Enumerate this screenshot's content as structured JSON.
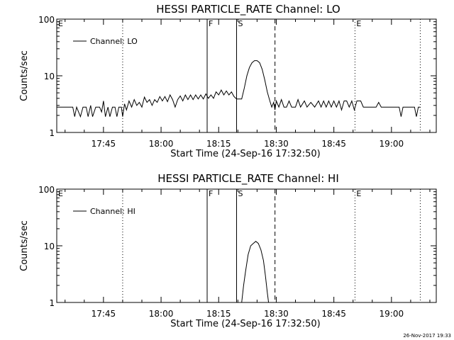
{
  "chart_data": [
    {
      "type": "line",
      "title": "HESSI PARTICLE_RATE Channel: LO",
      "xlabel": "Start Time (24-Sep-16 17:32:50)",
      "ylabel": "Counts/sec",
      "yscale": "log",
      "ylim": [
        1,
        100
      ],
      "xlim": [
        "17:32:50",
        "19:11:40"
      ],
      "xticks": [
        "17:45",
        "18:00",
        "18:15",
        "18:30",
        "18:45",
        "19:00"
      ],
      "yticks": [
        "1",
        "10",
        "100"
      ],
      "legend": {
        "placement": "top-left",
        "entries": [
          "Channel: LO"
        ]
      },
      "flags": [
        {
          "label": "E",
          "time": "17:32:50",
          "style": "dotted"
        },
        {
          "label": "",
          "time": "17:50:00",
          "style": "dotted"
        },
        {
          "label": "F",
          "time": "18:12:00",
          "style": "solid"
        },
        {
          "label": "S",
          "time": "18:19:40",
          "style": "solid"
        },
        {
          "label": "",
          "time": "18:29:40",
          "style": "dashed"
        },
        {
          "label": "E",
          "time": "18:50:30",
          "style": "dotted"
        },
        {
          "label": "",
          "time": "19:07:30",
          "style": "dotted"
        }
      ],
      "series": [
        {
          "name": "Channel: LO",
          "points": [
            [
              "17:32:50",
              2.8
            ],
            [
              "17:37:00",
              2.8
            ],
            [
              "17:37:30",
              1.9
            ],
            [
              "17:38:00",
              2.8
            ],
            [
              "17:39:00",
              1.9
            ],
            [
              "17:39:40",
              2.8
            ],
            [
              "17:40:30",
              2.8
            ],
            [
              "17:41:00",
              1.9
            ],
            [
              "17:41:40",
              3.0
            ],
            [
              "17:42:10",
              1.9
            ],
            [
              "17:43:00",
              2.8
            ],
            [
              "17:44:00",
              2.8
            ],
            [
              "17:44:30",
              2.3
            ],
            [
              "17:45:00",
              3.6
            ],
            [
              "17:45:30",
              1.9
            ],
            [
              "17:46:10",
              2.8
            ],
            [
              "17:46:40",
              1.9
            ],
            [
              "17:47:20",
              2.8
            ],
            [
              "17:48:00",
              2.8
            ],
            [
              "17:48:30",
              1.9
            ],
            [
              "17:49:00",
              2.8
            ],
            [
              "17:49:40",
              2.8
            ],
            [
              "17:50:00",
              1.9
            ],
            [
              "17:50:30",
              3.2
            ],
            [
              "17:51:00",
              2.5
            ],
            [
              "17:51:40",
              3.6
            ],
            [
              "17:52:20",
              2.8
            ],
            [
              "17:53:00",
              3.8
            ],
            [
              "17:53:40",
              3.0
            ],
            [
              "17:54:20",
              3.4
            ],
            [
              "17:55:00",
              2.8
            ],
            [
              "17:55:40",
              4.2
            ],
            [
              "17:56:20",
              3.4
            ],
            [
              "17:57:00",
              3.8
            ],
            [
              "17:57:40",
              3.0
            ],
            [
              "17:58:20",
              3.8
            ],
            [
              "17:59:00",
              3.4
            ],
            [
              "17:59:40",
              4.3
            ],
            [
              "18:00:20",
              3.6
            ],
            [
              "18:01:00",
              4.3
            ],
            [
              "18:01:40",
              3.5
            ],
            [
              "18:02:20",
              4.6
            ],
            [
              "18:03:00",
              3.8
            ],
            [
              "18:03:40",
              2.8
            ],
            [
              "18:04:20",
              3.8
            ],
            [
              "18:05:00",
              4.4
            ],
            [
              "18:05:40",
              3.6
            ],
            [
              "18:06:20",
              4.6
            ],
            [
              "18:07:00",
              3.8
            ],
            [
              "18:07:40",
              4.6
            ],
            [
              "18:08:20",
              3.8
            ],
            [
              "18:09:00",
              4.6
            ],
            [
              "18:09:40",
              3.9
            ],
            [
              "18:10:20",
              4.6
            ],
            [
              "18:11:00",
              3.9
            ],
            [
              "18:11:40",
              4.8
            ],
            [
              "18:12:20",
              4.0
            ],
            [
              "18:13:00",
              4.6
            ],
            [
              "18:13:40",
              4.0
            ],
            [
              "18:14:20",
              5.2
            ],
            [
              "18:15:00",
              4.6
            ],
            [
              "18:15:40",
              5.6
            ],
            [
              "18:16:20",
              4.6
            ],
            [
              "18:17:00",
              5.4
            ],
            [
              "18:17:40",
              4.6
            ],
            [
              "18:18:20",
              5.2
            ],
            [
              "18:19:00",
              4.3
            ],
            [
              "18:19:40",
              3.9
            ],
            [
              "18:21:00",
              3.9
            ],
            [
              "18:21:40",
              6.0
            ],
            [
              "18:22:20",
              10.0
            ],
            [
              "18:23:00",
              14.0
            ],
            [
              "18:23:40",
              17.0
            ],
            [
              "18:24:20",
              18.5
            ],
            [
              "18:25:00",
              18.5
            ],
            [
              "18:25:40",
              17.0
            ],
            [
              "18:26:20",
              13.0
            ],
            [
              "18:27:00",
              8.5
            ],
            [
              "18:27:40",
              5.2
            ],
            [
              "18:28:20",
              3.6
            ],
            [
              "18:28:50",
              2.8
            ],
            [
              "18:29:20",
              3.4
            ],
            [
              "18:29:40",
              2.5
            ],
            [
              "18:30:00",
              3.6
            ],
            [
              "18:30:40",
              2.8
            ],
            [
              "18:31:20",
              3.8
            ],
            [
              "18:32:00",
              2.8
            ],
            [
              "18:32:40",
              2.8
            ],
            [
              "18:33:20",
              3.6
            ],
            [
              "18:34:00",
              2.8
            ],
            [
              "18:35:00",
              2.8
            ],
            [
              "18:35:40",
              3.8
            ],
            [
              "18:36:20",
              2.8
            ],
            [
              "18:37:20",
              3.6
            ],
            [
              "18:38:00",
              2.8
            ],
            [
              "18:39:00",
              3.4
            ],
            [
              "18:40:00",
              2.8
            ],
            [
              "18:41:00",
              3.6
            ],
            [
              "18:41:40",
              2.8
            ],
            [
              "18:42:20",
              3.6
            ],
            [
              "18:43:00",
              2.8
            ],
            [
              "18:43:40",
              3.6
            ],
            [
              "18:44:20",
              2.8
            ],
            [
              "18:45:00",
              3.6
            ],
            [
              "18:45:40",
              2.8
            ],
            [
              "18:46:20",
              3.6
            ],
            [
              "18:47:00",
              2.5
            ],
            [
              "18:47:40",
              3.6
            ],
            [
              "18:48:20",
              3.6
            ],
            [
              "18:49:00",
              2.8
            ],
            [
              "18:49:40",
              3.6
            ],
            [
              "18:50:20",
              2.5
            ],
            [
              "18:51:00",
              3.6
            ],
            [
              "18:52:00",
              3.6
            ],
            [
              "18:52:40",
              2.8
            ],
            [
              "18:55:00",
              2.8
            ],
            [
              "18:56:00",
              2.8
            ],
            [
              "18:56:40",
              3.4
            ],
            [
              "18:57:20",
              2.8
            ],
            [
              "19:00:00",
              2.8
            ],
            [
              "19:02:00",
              2.8
            ],
            [
              "19:02:30",
              1.9
            ],
            [
              "19:03:00",
              2.8
            ],
            [
              "19:05:00",
              2.8
            ],
            [
              "19:06:00",
              2.8
            ],
            [
              "19:06:30",
              1.9
            ],
            [
              "19:07:00",
              2.8
            ],
            [
              "19:07:30",
              2.8
            ]
          ]
        }
      ]
    },
    {
      "type": "line",
      "title": "HESSI PARTICLE_RATE Channel: HI",
      "xlabel": "Start Time (24-Sep-16 17:32:50)",
      "ylabel": "Counts/sec",
      "yscale": "log",
      "ylim": [
        1,
        100
      ],
      "xlim": [
        "17:32:50",
        "19:11:40"
      ],
      "xticks": [
        "17:45",
        "18:00",
        "18:15",
        "18:30",
        "18:45",
        "19:00"
      ],
      "yticks": [
        "1",
        "10",
        "100"
      ],
      "legend": {
        "placement": "top-left",
        "entries": [
          "Channel: HI"
        ]
      },
      "flags": [
        {
          "label": "E",
          "time": "17:32:50",
          "style": "dotted"
        },
        {
          "label": "",
          "time": "17:50:00",
          "style": "dotted"
        },
        {
          "label": "F",
          "time": "18:12:00",
          "style": "solid"
        },
        {
          "label": "S",
          "time": "18:19:40",
          "style": "solid"
        },
        {
          "label": "",
          "time": "18:29:40",
          "style": "dashed"
        },
        {
          "label": "E",
          "time": "18:50:30",
          "style": "dotted"
        },
        {
          "label": "",
          "time": "19:07:30",
          "style": "dotted"
        }
      ],
      "series": [
        {
          "name": "Channel: HI",
          "points": [
            [
              "18:21:00",
              1.0
            ],
            [
              "18:21:30",
              2.0
            ],
            [
              "18:22:00",
              3.5
            ],
            [
              "18:22:40",
              7.0
            ],
            [
              "18:23:20",
              10.0
            ],
            [
              "18:24:00",
              11.0
            ],
            [
              "18:24:40",
              12.0
            ],
            [
              "18:25:20",
              11.0
            ],
            [
              "18:26:00",
              8.5
            ],
            [
              "18:26:40",
              5.5
            ],
            [
              "18:27:10",
              3.0
            ],
            [
              "18:27:40",
              1.5
            ],
            [
              "18:28:00",
              1.0
            ]
          ]
        }
      ]
    }
  ],
  "footer": {
    "timestamp": "26-Nov-2017 19:33"
  }
}
